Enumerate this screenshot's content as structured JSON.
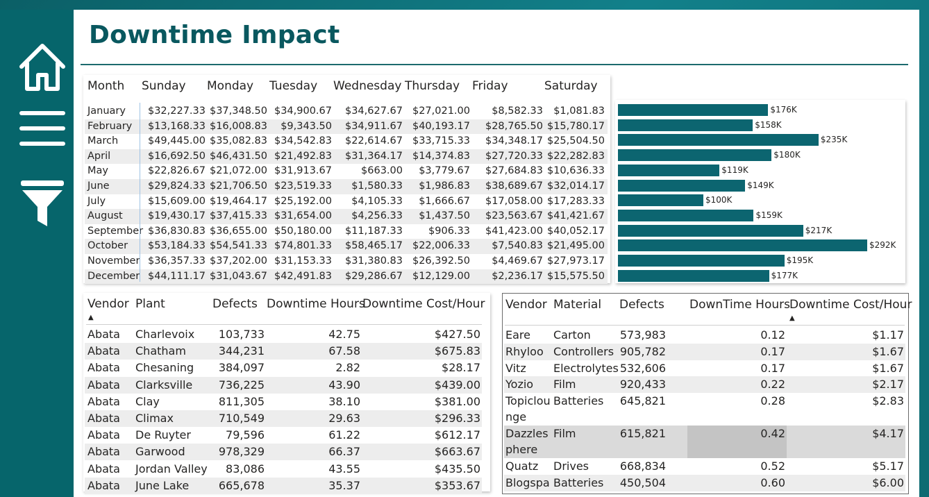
{
  "title": "Downtime Impact",
  "nav": {
    "home": "home-icon",
    "menu": "menu-icon",
    "filter": "filter-icon"
  },
  "matrix": {
    "headers": [
      "Month",
      "Sunday",
      "Monday",
      "Tuesday",
      "Wednesday",
      "Thursday",
      "Friday",
      "Saturday"
    ],
    "rows": [
      [
        "January",
        "$32,227.33",
        "$37,348.50",
        "$34,900.67",
        "$34,627.67",
        "$27,021.00",
        "$8,582.33",
        "$1,081.83"
      ],
      [
        "February",
        "$13,168.33",
        "$16,008.83",
        "$9,343.50",
        "$34,911.67",
        "$40,193.17",
        "$28,765.50",
        "$15,780.17"
      ],
      [
        "March",
        "$49,445.00",
        "$35,082.83",
        "$34,542.83",
        "$22,614.67",
        "$33,715.33",
        "$34,348.17",
        "$25,504.50"
      ],
      [
        "April",
        "$16,692.50",
        "$46,431.50",
        "$21,492.83",
        "$31,364.17",
        "$14,374.83",
        "$27,720.33",
        "$22,282.83"
      ],
      [
        "May",
        "$22,826.67",
        "$21,072.00",
        "$31,913.67",
        "$663.00",
        "$3,779.67",
        "$27,684.83",
        "$10,636.33"
      ],
      [
        "June",
        "$29,824.33",
        "$21,706.50",
        "$23,519.33",
        "$1,580.33",
        "$1,986.83",
        "$38,689.67",
        "$32,014.17"
      ],
      [
        "July",
        "$15,609.00",
        "$19,464.17",
        "$25,192.00",
        "$4,105.33",
        "$1,666.67",
        "$17,058.00",
        "$17,283.33"
      ],
      [
        "August",
        "$19,430.17",
        "$37,415.33",
        "$31,654.00",
        "$4,256.33",
        "$1,437.50",
        "$23,563.67",
        "$41,421.67"
      ],
      [
        "September",
        "$36,830.83",
        "$36,655.00",
        "$50,180.00",
        "$11,187.33",
        "$906.33",
        "$41,423.00",
        "$40,052.17"
      ],
      [
        "October",
        "$53,184.33",
        "$54,541.33",
        "$74,801.33",
        "$58,465.17",
        "$22,006.33",
        "$7,540.83",
        "$21,495.00"
      ],
      [
        "November",
        "$36,357.33",
        "$37,202.00",
        "$31,153.33",
        "$31,380.83",
        "$26,392.50",
        "$4,469.67",
        "$27,973.17"
      ],
      [
        "December",
        "$44,111.17",
        "$31,043.67",
        "$42,491.83",
        "$29,286.67",
        "$12,129.00",
        "$2,236.17",
        "$15,575.50"
      ]
    ]
  },
  "chart_data": {
    "type": "bar",
    "orientation": "horizontal",
    "categories": [
      "January",
      "February",
      "March",
      "April",
      "May",
      "June",
      "July",
      "August",
      "September",
      "October",
      "November",
      "December"
    ],
    "values": [
      176,
      158,
      235,
      180,
      119,
      149,
      100,
      159,
      217,
      292,
      195,
      177
    ],
    "labels": [
      "$176K",
      "$158K",
      "$235K",
      "$180K",
      "$119K",
      "$149K",
      "$100K",
      "$159K",
      "$217K",
      "$292K",
      "$195K",
      "$177K"
    ],
    "color": "#0c6570"
  },
  "plant_table": {
    "headers": [
      "Vendor",
      "Plant",
      "Defects",
      "Downtime Hours",
      "Downtime Cost/Hour"
    ],
    "sort_indicator": "▲",
    "rows": [
      [
        "Abata",
        "Charlevoix",
        "103,733",
        "42.75",
        "$427.50"
      ],
      [
        "Abata",
        "Chatham",
        "344,231",
        "67.58",
        "$675.83"
      ],
      [
        "Abata",
        "Chesaning",
        "384,097",
        "2.82",
        "$28.17"
      ],
      [
        "Abata",
        "Clarksville",
        "736,225",
        "43.90",
        "$439.00"
      ],
      [
        "Abata",
        "Clay",
        "811,305",
        "38.10",
        "$381.00"
      ],
      [
        "Abata",
        "Climax",
        "710,549",
        "29.63",
        "$296.33"
      ],
      [
        "Abata",
        "De Ruyter",
        "79,596",
        "61.22",
        "$612.17"
      ],
      [
        "Abata",
        "Garwood",
        "978,329",
        "66.37",
        "$663.67"
      ],
      [
        "Abata",
        "Jordan Valley",
        "83,086",
        "43.55",
        "$435.50"
      ],
      [
        "Abata",
        "June Lake",
        "665,678",
        "35.37",
        "$353.67"
      ]
    ]
  },
  "material_table": {
    "headers": [
      "Vendor",
      "Material",
      "Defects",
      "DownTime Hours",
      "Downtime Cost/Hour"
    ],
    "sort_indicator": "▲",
    "rows": [
      {
        "vendor": [
          "Eare"
        ],
        "material": "Carton",
        "defects": "573,983",
        "hours": "0.12",
        "cost": "$1.17"
      },
      {
        "vendor": [
          "Rhyloo"
        ],
        "material": "Controllers",
        "defects": "905,782",
        "hours": "0.17",
        "cost": "$1.67"
      },
      {
        "vendor": [
          "Vitz"
        ],
        "material": "Electrolytes",
        "defects": "532,606",
        "hours": "0.17",
        "cost": "$1.67"
      },
      {
        "vendor": [
          "Yozio"
        ],
        "material": "Film",
        "defects": "920,433",
        "hours": "0.22",
        "cost": "$2.17"
      },
      {
        "vendor": [
          "Topiclou",
          "nge"
        ],
        "material": "Batteries",
        "defects": "645,821",
        "hours": "0.28",
        "cost": "$2.83"
      },
      {
        "vendor": [
          "Dazzles",
          "phere"
        ],
        "material": "Film",
        "defects": "615,821",
        "hours": "0.42",
        "cost": "$4.17"
      },
      {
        "vendor": [
          "Quatz"
        ],
        "material": "Drives",
        "defects": "668,834",
        "hours": "0.52",
        "cost": "$5.17"
      },
      {
        "vendor": [
          "Blogspa"
        ],
        "material": "Batteries",
        "defects": "450,504",
        "hours": "0.60",
        "cost": "$6.00"
      }
    ]
  }
}
